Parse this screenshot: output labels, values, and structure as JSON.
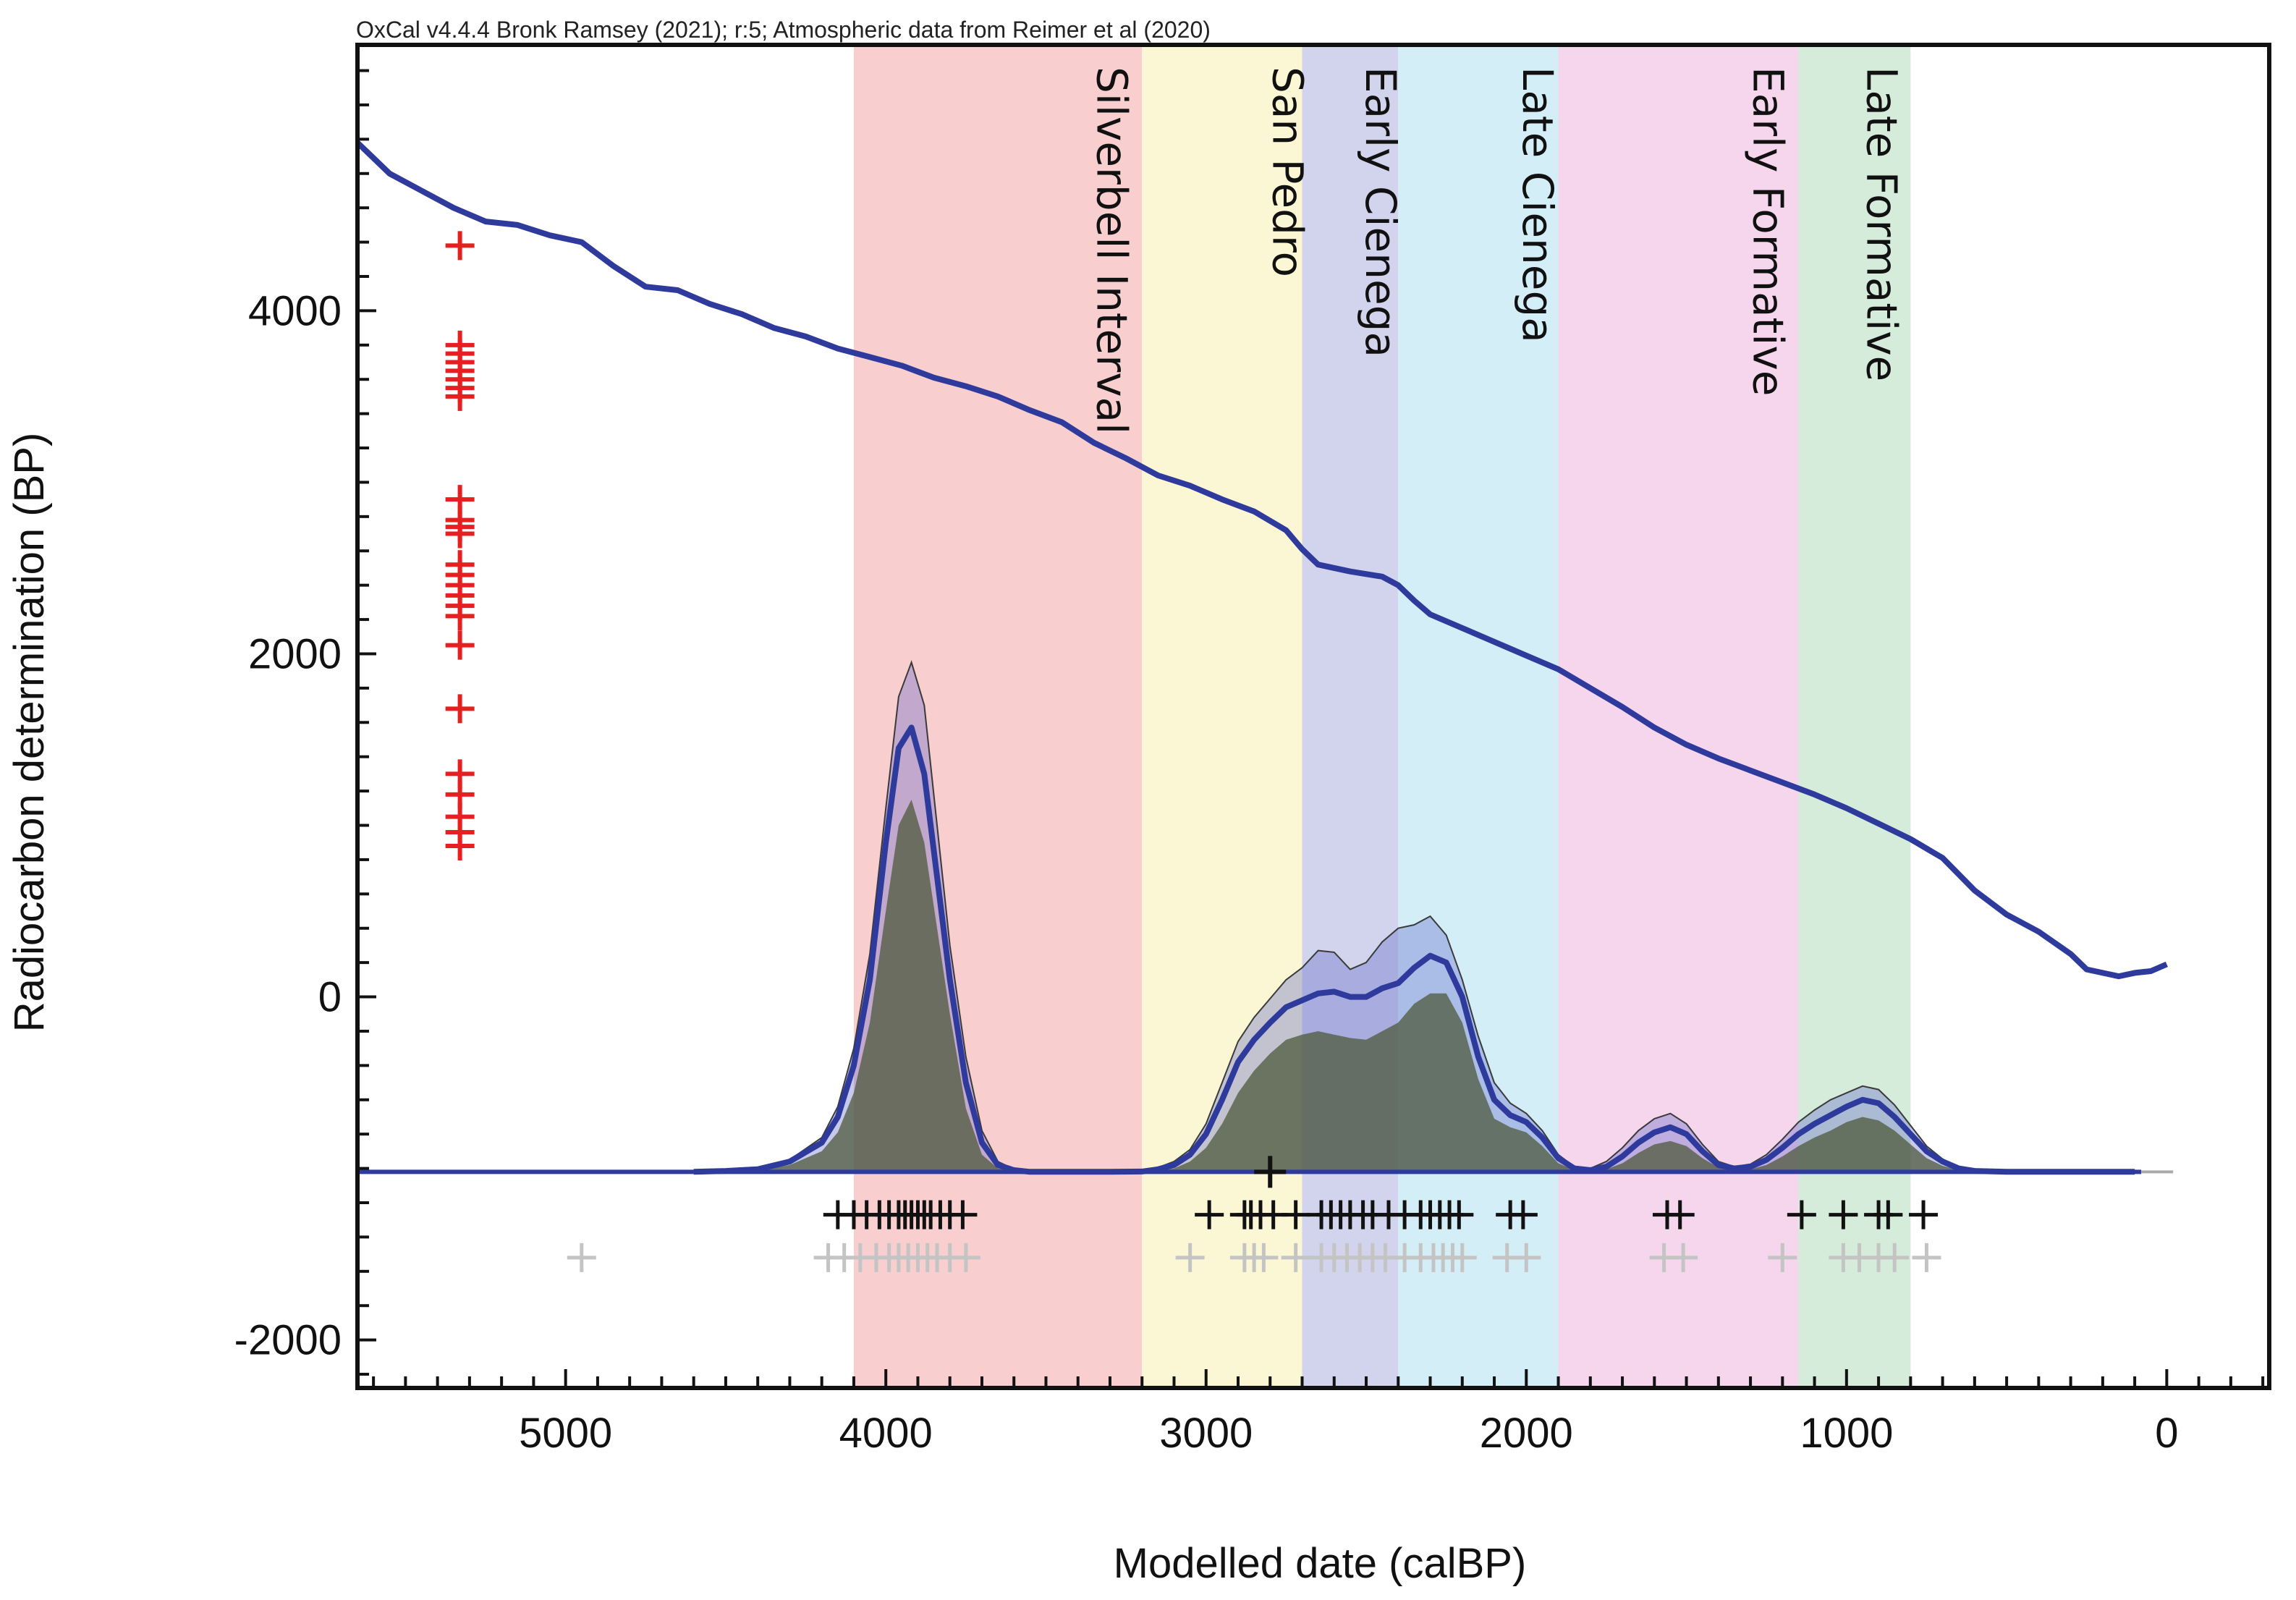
{
  "header": "OxCal v4.4.4 Bronk Ramsey (2021); r:5; Atmospheric data from Reimer et al (2020)",
  "chart_data": {
    "type": "line",
    "xlabel": "Modelled date (calBP)",
    "ylabel": "Radiocarbon determination (BP)",
    "xlim": [
      5650,
      -320
    ],
    "ylim": [
      -2280,
      5550
    ],
    "x_ticks": [
      {
        "value": 5000,
        "label": "5000"
      },
      {
        "value": 4000,
        "label": "4000"
      },
      {
        "value": 3000,
        "label": "3000"
      },
      {
        "value": 2000,
        "label": "2000"
      },
      {
        "value": 1000,
        "label": "1000"
      },
      {
        "value": 0,
        "label": "0"
      }
    ],
    "y_ticks": [
      {
        "value": 4000,
        "label": "4000"
      },
      {
        "value": 2000,
        "label": "2000"
      },
      {
        "value": 0,
        "label": "0"
      },
      {
        "value": -2000,
        "label": "-2000"
      }
    ],
    "periods": [
      {
        "name": "Silverbell Interval",
        "start": 4100,
        "end": 3200,
        "color": "#f7c5c5",
        "label_x": 3340
      },
      {
        "name": "San Pedro",
        "start": 3200,
        "end": 2700,
        "color": "#faf6cc",
        "label_x": 2790
      },
      {
        "name": "Early Cienega",
        "start": 2700,
        "end": 2400,
        "color": "#c9cde9",
        "label_x": 2500
      },
      {
        "name": "Late  Cienega",
        "start": 2400,
        "end": 1900,
        "color": "#cbebf5",
        "label_x": 2010
      },
      {
        "name": "Early Formative",
        "start": 1900,
        "end": 1150,
        "color": "#f3cfea",
        "label_x": 1290
      },
      {
        "name": "Late Formative",
        "start": 1150,
        "end": 800,
        "color": "#cfe9d5",
        "label_x": 935
      }
    ],
    "calibration_curve": {
      "name": "IntCal20 calibration curve",
      "color": "#2e3a9c",
      "x": [
        5650,
        5550,
        5450,
        5350,
        5250,
        5150,
        5050,
        4950,
        4850,
        4750,
        4650,
        4550,
        4450,
        4350,
        4250,
        4150,
        4050,
        3950,
        3850,
        3750,
        3650,
        3550,
        3450,
        3350,
        3250,
        3150,
        3050,
        2950,
        2850,
        2750,
        2700,
        2650,
        2550,
        2450,
        2400,
        2350,
        2300,
        2200,
        2100,
        2000,
        1900,
        1800,
        1700,
        1600,
        1500,
        1400,
        1300,
        1200,
        1100,
        1000,
        900,
        800,
        700,
        600,
        500,
        400,
        300,
        250,
        200,
        150,
        100,
        50,
        0
      ],
      "y": [
        4980,
        4800,
        4700,
        4600,
        4520,
        4500,
        4440,
        4400,
        4260,
        4140,
        4120,
        4040,
        3980,
        3900,
        3850,
        3780,
        3730,
        3680,
        3610,
        3560,
        3500,
        3420,
        3350,
        3230,
        3140,
        3040,
        2980,
        2900,
        2830,
        2720,
        2610,
        2520,
        2480,
        2450,
        2400,
        2310,
        2230,
        2150,
        2070,
        1990,
        1910,
        1800,
        1690,
        1570,
        1470,
        1390,
        1320,
        1250,
        1180,
        1100,
        1010,
        920,
        810,
        620,
        480,
        380,
        250,
        160,
        140,
        120,
        140,
        150,
        190
      ]
    },
    "summed_probability": {
      "name": "Summed probability envelope",
      "baseline": -1020,
      "x": [
        4600,
        4500,
        4400,
        4300,
        4200,
        4150,
        4100,
        4050,
        4000,
        3960,
        3920,
        3880,
        3840,
        3800,
        3750,
        3700,
        3650,
        3600,
        3550,
        3500,
        3400,
        3300,
        3200,
        3150,
        3100,
        3050,
        3000,
        2950,
        2900,
        2850,
        2800,
        2750,
        2700,
        2650,
        2600,
        2550,
        2500,
        2450,
        2400,
        2350,
        2300,
        2250,
        2200,
        2150,
        2100,
        2050,
        2000,
        1950,
        1900,
        1850,
        1800,
        1750,
        1700,
        1650,
        1600,
        1550,
        1500,
        1450,
        1400,
        1350,
        1300,
        1250,
        1200,
        1150,
        1100,
        1050,
        1000,
        950,
        900,
        850,
        800,
        750,
        700,
        650,
        600,
        500,
        400,
        300,
        200,
        100
      ],
      "mean": [
        -1020,
        -1015,
        -1005,
        -960,
        -850,
        -700,
        -400,
        100,
        900,
        1450,
        1570,
        1300,
        700,
        100,
        -500,
        -850,
        -980,
        -1010,
        -1020,
        -1020,
        -1020,
        -1020,
        -1018,
        -1005,
        -980,
        -920,
        -800,
        -600,
        -380,
        -250,
        -150,
        -60,
        -20,
        20,
        30,
        0,
        0,
        50,
        80,
        170,
        240,
        200,
        0,
        -350,
        -600,
        -690,
        -730,
        -820,
        -940,
        -1000,
        -1010,
        -990,
        -930,
        -850,
        -790,
        -760,
        -800,
        -900,
        -980,
        -1000,
        -990,
        -950,
        -880,
        -800,
        -740,
        -690,
        -640,
        -600,
        -620,
        -700,
        -800,
        -900,
        -960,
        -1000,
        -1015,
        -1020,
        -1020,
        -1020,
        -1020,
        -1020
      ],
      "upper": [
        -1020,
        -1012,
        -1000,
        -950,
        -820,
        -640,
        -300,
        250,
        1100,
        1750,
        1950,
        1700,
        1000,
        300,
        -350,
        -780,
        -960,
        -1005,
        -1018,
        -1020,
        -1020,
        -1020,
        -1015,
        -995,
        -960,
        -890,
        -740,
        -500,
        -260,
        -120,
        -10,
        100,
        170,
        270,
        260,
        160,
        200,
        320,
        400,
        420,
        470,
        360,
        100,
        -230,
        -500,
        -620,
        -680,
        -780,
        -920,
        -990,
        -1000,
        -960,
        -880,
        -780,
        -710,
        -680,
        -740,
        -860,
        -960,
        -990,
        -975,
        -920,
        -830,
        -730,
        -660,
        -600,
        -560,
        -520,
        -540,
        -630,
        -750,
        -870,
        -945,
        -995,
        -1012,
        -1020,
        -1020,
        -1020,
        -1020,
        -1020
      ],
      "lower": [
        -1020,
        -1018,
        -1012,
        -980,
        -900,
        -790,
        -560,
        -150,
        500,
        1000,
        1150,
        900,
        400,
        -100,
        -650,
        -920,
        -1000,
        -1015,
        -1020,
        -1020,
        -1020,
        -1020,
        -1020,
        -1015,
        -1000,
        -960,
        -880,
        -740,
        -560,
        -430,
        -330,
        -250,
        -220,
        -200,
        -220,
        -240,
        -250,
        -200,
        -150,
        -40,
        20,
        20,
        -150,
        -480,
        -710,
        -760,
        -790,
        -870,
        -970,
        -1010,
        -1015,
        -1005,
        -970,
        -910,
        -860,
        -840,
        -870,
        -940,
        -995,
        -1010,
        -1005,
        -980,
        -930,
        -870,
        -820,
        -780,
        -730,
        -700,
        -720,
        -780,
        -860,
        -940,
        -985,
        -1010,
        -1018,
        -1020,
        -1020,
        -1020,
        -1020,
        -1020
      ]
    },
    "measured_dates": {
      "name": "Radiocarbon determinations",
      "color": "#e62020",
      "x": 5330,
      "values": [
        4380,
        3800,
        3750,
        3700,
        3650,
        3600,
        3550,
        3500,
        2900,
        2780,
        2740,
        2700,
        2520,
        2460,
        2400,
        2340,
        2280,
        2220,
        2050,
        1680,
        1300,
        1180,
        1050,
        960,
        880
      ]
    },
    "modelled_medians": {
      "name": "Modelled calibrated dates",
      "color": "#111111",
      "y": -1270,
      "x": [
        4150,
        4100,
        4060,
        4020,
        3990,
        3960,
        3940,
        3920,
        3900,
        3880,
        3860,
        3830,
        3800,
        3760,
        2990,
        2880,
        2860,
        2830,
        2790,
        2720,
        2640,
        2610,
        2580,
        2550,
        2510,
        2480,
        2430,
        2380,
        2330,
        2300,
        2270,
        2240,
        2210,
        2050,
        2010,
        1560,
        1520,
        1140,
        1010,
        900,
        870,
        760
      ]
    },
    "unmodelled_medians": {
      "name": "Unmodelled calibrated dates",
      "color": "#c4c4c4",
      "y": -1520,
      "x": [
        4950,
        4180,
        4130,
        4080,
        4030,
        3990,
        3960,
        3930,
        3900,
        3870,
        3840,
        3800,
        3750,
        3050,
        2880,
        2850,
        2820,
        2720,
        2640,
        2600,
        2560,
        2520,
        2480,
        2440,
        2380,
        2330,
        2290,
        2260,
        2230,
        2200,
        2060,
        2000,
        1570,
        1510,
        1200,
        1010,
        960,
        900,
        850,
        750
      ]
    },
    "intercept_marker": {
      "x": 2800,
      "y": -1020,
      "color": "#111111"
    }
  }
}
